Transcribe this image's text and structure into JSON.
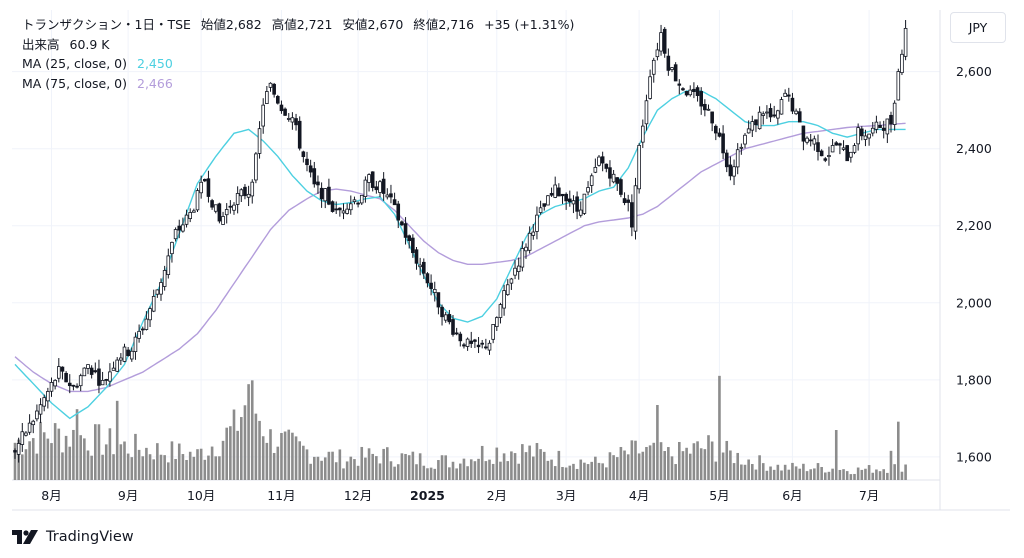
{
  "header": {
    "title": "トランザクション・1日・TSE",
    "open_label": "始値",
    "open": "2,682",
    "high_label": "高値",
    "high": "2,721",
    "low_label": "安値",
    "low": "2,670",
    "close_label": "終値",
    "close": "2,716",
    "change": "+35 (+1.31%)",
    "volume_label": "出来高",
    "volume": "60.9 K",
    "ma25_label": "MA (25, close, 0)",
    "ma25_value": "2,450",
    "ma25_color": "#4dd0e1",
    "ma75_label": "MA (75, close, 0)",
    "ma75_value": "2,466",
    "ma75_color": "#b39ddb"
  },
  "currency_button": "JPY",
  "brand": {
    "name": "TradingView",
    "logo_icon": "tradingview-logo-icon"
  },
  "colors": {
    "up": "#ffffff",
    "down": "#131722",
    "volume": "#8c8c8c"
  },
  "chart_data": {
    "type": "candlestick",
    "ylim": [
      1540,
      2760
    ],
    "y_ticks": [
      1600,
      1800,
      2000,
      2200,
      2400,
      2600
    ],
    "y_tick_labels": [
      "1,600",
      "1,800",
      "2,000",
      "2,200",
      "2,400",
      "2,600"
    ],
    "x_ticks": [
      "8月",
      "9月",
      "10月",
      "11月",
      "12月",
      "2025",
      "2月",
      "3月",
      "4月",
      "5月",
      "6月",
      "7月"
    ],
    "x_tick_index": [
      10,
      31,
      51,
      73,
      94,
      113,
      132,
      151,
      171,
      193,
      213,
      234
    ],
    "grid": true,
    "anchors": {
      "close": [
        [
          0,
          1620
        ],
        [
          4,
          1680
        ],
        [
          8,
          1750
        ],
        [
          12,
          1820
        ],
        [
          16,
          1780
        ],
        [
          20,
          1840
        ],
        [
          24,
          1790
        ],
        [
          28,
          1860
        ],
        [
          32,
          1880
        ],
        [
          36,
          1960
        ],
        [
          40,
          2060
        ],
        [
          44,
          2180
        ],
        [
          48,
          2230
        ],
        [
          52,
          2320
        ],
        [
          56,
          2210
        ],
        [
          60,
          2270
        ],
        [
          64,
          2290
        ],
        [
          66,
          2370
        ],
        [
          68,
          2520
        ],
        [
          70,
          2560
        ],
        [
          73,
          2510
        ],
        [
          76,
          2480
        ],
        [
          79,
          2380
        ],
        [
          82,
          2300
        ],
        [
          85,
          2280
        ],
        [
          88,
          2230
        ],
        [
          91,
          2260
        ],
        [
          94,
          2270
        ],
        [
          97,
          2320
        ],
        [
          100,
          2300
        ],
        [
          103,
          2260
        ],
        [
          106,
          2200
        ],
        [
          109,
          2130
        ],
        [
          112,
          2080
        ],
        [
          115,
          2020
        ],
        [
          118,
          1960
        ],
        [
          121,
          1920
        ],
        [
          124,
          1890
        ],
        [
          127,
          1880
        ],
        [
          130,
          1900
        ],
        [
          133,
          1990
        ],
        [
          136,
          2070
        ],
        [
          139,
          2130
        ],
        [
          142,
          2200
        ],
        [
          145,
          2250
        ],
        [
          148,
          2290
        ],
        [
          151,
          2280
        ],
        [
          154,
          2240
        ],
        [
          157,
          2290
        ],
        [
          160,
          2370
        ],
        [
          163,
          2340
        ],
        [
          166,
          2290
        ],
        [
          168,
          2250
        ],
        [
          169,
          2210
        ],
        [
          171,
          2400
        ],
        [
          174,
          2600
        ],
        [
          177,
          2700
        ],
        [
          179,
          2620
        ],
        [
          182,
          2570
        ],
        [
          185,
          2540
        ],
        [
          188,
          2520
        ],
        [
          191,
          2480
        ],
        [
          194,
          2400
        ],
        [
          196,
          2340
        ],
        [
          199,
          2420
        ],
        [
          202,
          2460
        ],
        [
          205,
          2500
        ],
        [
          208,
          2470
        ],
        [
          211,
          2540
        ],
        [
          213,
          2510
        ],
        [
          216,
          2430
        ],
        [
          219,
          2420
        ],
        [
          222,
          2380
        ],
        [
          225,
          2410
        ],
        [
          228,
          2380
        ],
        [
          231,
          2440
        ],
        [
          234,
          2440
        ],
        [
          237,
          2460
        ],
        [
          240,
          2470
        ],
        [
          242,
          2600
        ],
        [
          244,
          2720
        ]
      ],
      "ma25": [
        [
          0,
          1840
        ],
        [
          10,
          1740
        ],
        [
          15,
          1700
        ],
        [
          20,
          1730
        ],
        [
          25,
          1780
        ],
        [
          30,
          1840
        ],
        [
          35,
          1950
        ],
        [
          40,
          2050
        ],
        [
          45,
          2180
        ],
        [
          50,
          2310
        ],
        [
          55,
          2380
        ],
        [
          60,
          2440
        ],
        [
          64,
          2450
        ],
        [
          68,
          2420
        ],
        [
          72,
          2380
        ],
        [
          76,
          2330
        ],
        [
          80,
          2290
        ],
        [
          84,
          2265
        ],
        [
          88,
          2255
        ],
        [
          92,
          2260
        ],
        [
          96,
          2270
        ],
        [
          100,
          2275
        ],
        [
          104,
          2230
        ],
        [
          108,
          2150
        ],
        [
          112,
          2070
        ],
        [
          116,
          2000
        ],
        [
          120,
          1960
        ],
        [
          124,
          1950
        ],
        [
          128,
          1965
        ],
        [
          132,
          2010
        ],
        [
          136,
          2090
        ],
        [
          140,
          2170
        ],
        [
          144,
          2230
        ],
        [
          148,
          2250
        ],
        [
          152,
          2260
        ],
        [
          156,
          2270
        ],
        [
          160,
          2290
        ],
        [
          164,
          2300
        ],
        [
          168,
          2350
        ],
        [
          172,
          2430
        ],
        [
          176,
          2500
        ],
        [
          180,
          2530
        ],
        [
          184,
          2550
        ],
        [
          188,
          2550
        ],
        [
          192,
          2530
        ],
        [
          196,
          2500
        ],
        [
          200,
          2470
        ],
        [
          204,
          2460
        ],
        [
          208,
          2460
        ],
        [
          212,
          2470
        ],
        [
          216,
          2470
        ],
        [
          220,
          2460
        ],
        [
          224,
          2440
        ],
        [
          228,
          2430
        ],
        [
          232,
          2440
        ],
        [
          236,
          2450
        ],
        [
          240,
          2450
        ],
        [
          244,
          2450
        ]
      ],
      "ma75": [
        [
          0,
          1860
        ],
        [
          5,
          1820
        ],
        [
          10,
          1790
        ],
        [
          15,
          1770
        ],
        [
          20,
          1770
        ],
        [
          25,
          1780
        ],
        [
          30,
          1800
        ],
        [
          35,
          1820
        ],
        [
          40,
          1850
        ],
        [
          45,
          1880
        ],
        [
          50,
          1920
        ],
        [
          55,
          1980
        ],
        [
          60,
          2050
        ],
        [
          65,
          2120
        ],
        [
          70,
          2190
        ],
        [
          75,
          2240
        ],
        [
          80,
          2270
        ],
        [
          84,
          2290
        ],
        [
          88,
          2295
        ],
        [
          92,
          2290
        ],
        [
          96,
          2280
        ],
        [
          100,
          2270
        ],
        [
          104,
          2240
        ],
        [
          108,
          2200
        ],
        [
          112,
          2160
        ],
        [
          116,
          2130
        ],
        [
          120,
          2110
        ],
        [
          124,
          2100
        ],
        [
          128,
          2100
        ],
        [
          132,
          2105
        ],
        [
          136,
          2110
        ],
        [
          140,
          2120
        ],
        [
          144,
          2140
        ],
        [
          148,
          2160
        ],
        [
          152,
          2180
        ],
        [
          156,
          2200
        ],
        [
          160,
          2210
        ],
        [
          164,
          2215
        ],
        [
          168,
          2220
        ],
        [
          172,
          2230
        ],
        [
          176,
          2250
        ],
        [
          180,
          2280
        ],
        [
          184,
          2310
        ],
        [
          188,
          2340
        ],
        [
          192,
          2360
        ],
        [
          196,
          2380
        ],
        [
          200,
          2400
        ],
        [
          204,
          2410
        ],
        [
          208,
          2420
        ],
        [
          212,
          2430
        ],
        [
          216,
          2440
        ],
        [
          220,
          2445
        ],
        [
          224,
          2450
        ],
        [
          228,
          2455
        ],
        [
          232,
          2458
        ],
        [
          236,
          2460
        ],
        [
          240,
          2463
        ],
        [
          244,
          2466
        ]
      ],
      "volume": [
        [
          0,
          45
        ],
        [
          10,
          55
        ],
        [
          20,
          50
        ],
        [
          30,
          40
        ],
        [
          40,
          35
        ],
        [
          50,
          30
        ],
        [
          60,
          60
        ],
        [
          64,
          100
        ],
        [
          70,
          50
        ],
        [
          80,
          35
        ],
        [
          90,
          25
        ],
        [
          100,
          30
        ],
        [
          110,
          25
        ],
        [
          120,
          22
        ],
        [
          130,
          35
        ],
        [
          140,
          35
        ],
        [
          150,
          25
        ],
        [
          160,
          20
        ],
        [
          170,
          35
        ],
        [
          180,
          30
        ],
        [
          190,
          40
        ],
        [
          200,
          25
        ],
        [
          210,
          15
        ],
        [
          220,
          15
        ],
        [
          230,
          12
        ],
        [
          240,
          15
        ],
        [
          244,
          18
        ]
      ],
      "volume_spikes": [
        [
          17,
          85
        ],
        [
          28,
          95
        ],
        [
          64,
          115
        ],
        [
          72,
          40
        ],
        [
          176,
          90
        ],
        [
          193,
          125
        ],
        [
          225,
          60
        ],
        [
          240,
          35
        ],
        [
          242,
          70
        ]
      ]
    }
  }
}
